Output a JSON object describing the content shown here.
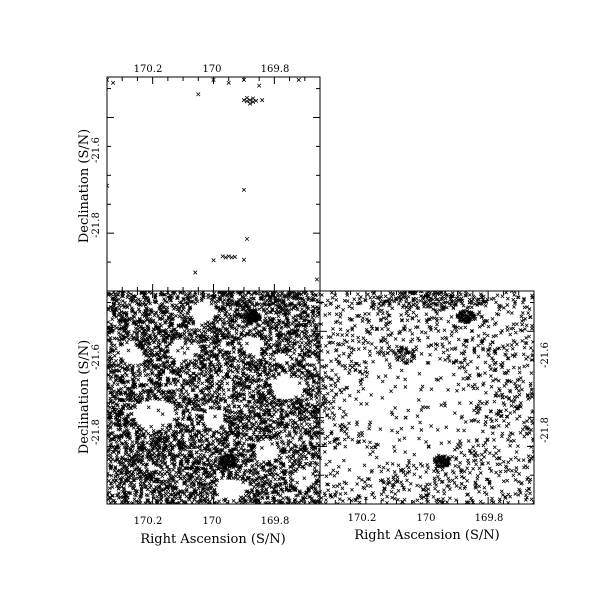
{
  "chart_data": [
    {
      "type": "scatter",
      "panel": "top-left",
      "marker": "x",
      "density": "sparse",
      "xlabel": "",
      "ylabel": "Declination (S/N)",
      "xlim": [
        170.35,
        169.65
      ],
      "ylim": [
        -21.9,
        -21.53
      ],
      "xticks_top": [
        "170.2",
        "170",
        "169.8"
      ],
      "yticks_left": [
        "-21.6",
        "-21.8"
      ],
      "points": [
        {
          "x": 170.35,
          "y": -21.535
        },
        {
          "x": 170.33,
          "y": -21.54
        },
        {
          "x": 170.0,
          "y": -21.535
        },
        {
          "x": 169.95,
          "y": -21.54
        },
        {
          "x": 169.9,
          "y": -21.535
        },
        {
          "x": 169.85,
          "y": -21.545
        },
        {
          "x": 169.72,
          "y": -21.535
        },
        {
          "x": 170.05,
          "y": -21.56
        },
        {
          "x": 169.9,
          "y": -21.57
        },
        {
          "x": 169.89,
          "y": -21.572
        },
        {
          "x": 169.88,
          "y": -21.57
        },
        {
          "x": 169.87,
          "y": -21.573
        },
        {
          "x": 169.86,
          "y": -21.571
        },
        {
          "x": 169.84,
          "y": -21.57
        },
        {
          "x": 169.89,
          "y": -21.566
        },
        {
          "x": 169.87,
          "y": -21.567
        },
        {
          "x": 169.88,
          "y": -21.576
        },
        {
          "x": 169.9,
          "y": -21.725
        },
        {
          "x": 169.89,
          "y": -21.81
        },
        {
          "x": 170.35,
          "y": -21.718
        },
        {
          "x": 169.97,
          "y": -21.84
        },
        {
          "x": 169.96,
          "y": -21.842
        },
        {
          "x": 169.95,
          "y": -21.84
        },
        {
          "x": 169.94,
          "y": -21.842
        },
        {
          "x": 169.93,
          "y": -21.841
        },
        {
          "x": 170.0,
          "y": -21.847
        },
        {
          "x": 169.9,
          "y": -21.846
        },
        {
          "x": 170.06,
          "y": -21.868
        },
        {
          "x": 169.66,
          "y": -21.88
        }
      ]
    },
    {
      "type": "scatter",
      "panel": "bottom-left",
      "marker": "x",
      "density": "very dense",
      "xlabel": "Right Ascension (S/N)",
      "ylabel": "Declination (S/N)",
      "xlim": [
        170.35,
        169.65
      ],
      "ylim": [
        -21.9,
        -21.53
      ],
      "xticks_bottom": [
        "170.2",
        "170",
        "169.8"
      ],
      "yticks_left": [
        "-21.6",
        "-21.8"
      ],
      "points": []
    },
    {
      "type": "scatter",
      "panel": "bottom-right",
      "marker": "x",
      "density": "moderate",
      "xlabel": "Right Ascension (S/N)",
      "ylabel": "",
      "xlim": [
        170.35,
        169.65
      ],
      "ylim": [
        -21.9,
        -21.53
      ],
      "xticks_bottom": [
        "170.2",
        "170",
        "169.8"
      ],
      "yticks_right": [
        "-21.6",
        "-21.8"
      ],
      "points": []
    }
  ]
}
